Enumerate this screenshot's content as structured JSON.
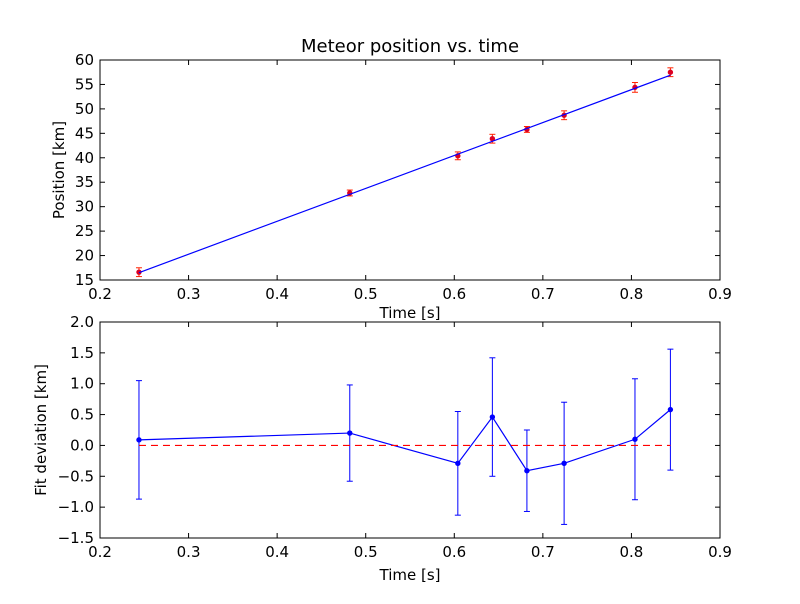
{
  "chart_data": [
    {
      "type": "scatter",
      "title": "Meteor position vs. time",
      "xlabel": "Time [s]",
      "ylabel": "Position [km]",
      "xlim": [
        0.2,
        0.9
      ],
      "ylim": [
        15,
        60
      ],
      "xticks": [
        "0.2",
        "0.3",
        "0.4",
        "0.5",
        "0.6",
        "0.7",
        "0.8",
        "0.9"
      ],
      "yticks": [
        "15",
        "20",
        "25",
        "30",
        "35",
        "40",
        "45",
        "50",
        "55",
        "60"
      ],
      "grid": false,
      "series": [
        {
          "kind": "points_with_errorbars",
          "color": "#dd0022",
          "errcolor": "#ff2200",
          "x": [
            0.244,
            0.482,
            0.604,
            0.643,
            0.682,
            0.724,
            0.804,
            0.844
          ],
          "y": [
            16.6,
            32.8,
            40.4,
            43.9,
            45.8,
            48.7,
            54.4,
            57.5
          ],
          "yerr": [
            0.9,
            0.6,
            0.8,
            0.9,
            0.6,
            0.9,
            1.0,
            0.9
          ]
        },
        {
          "kind": "fit_line",
          "color": "#0000ff",
          "x": [
            0.244,
            0.844
          ],
          "y": [
            16.5,
            56.9
          ]
        }
      ]
    },
    {
      "type": "line",
      "xlabel": "Time [s]",
      "ylabel": "Fit deviation [km]",
      "xlim": [
        0.2,
        0.9
      ],
      "ylim": [
        -1.5,
        2.0
      ],
      "xticks": [
        "0.2",
        "0.3",
        "0.4",
        "0.5",
        "0.6",
        "0.7",
        "0.8",
        "0.9"
      ],
      "yticks": [
        "−1.5",
        "−1.0",
        "−0.5",
        "0.0",
        "0.5",
        "1.0",
        "1.5",
        "2.0"
      ],
      "grid": false,
      "series": [
        {
          "kind": "line_with_errorbars",
          "color": "#0000ff",
          "x": [
            0.244,
            0.482,
            0.604,
            0.643,
            0.682,
            0.724,
            0.804,
            0.844
          ],
          "y": [
            0.09,
            0.2,
            -0.29,
            0.46,
            -0.41,
            -0.29,
            0.1,
            0.58
          ],
          "yerr": [
            0.96,
            0.78,
            0.84,
            0.96,
            0.66,
            0.99,
            0.98,
            0.98
          ]
        },
        {
          "kind": "reference_line",
          "color": "#ff0000",
          "style": "dashed",
          "x": [
            0.244,
            0.844
          ],
          "y": [
            0.0,
            0.0
          ]
        }
      ]
    }
  ]
}
